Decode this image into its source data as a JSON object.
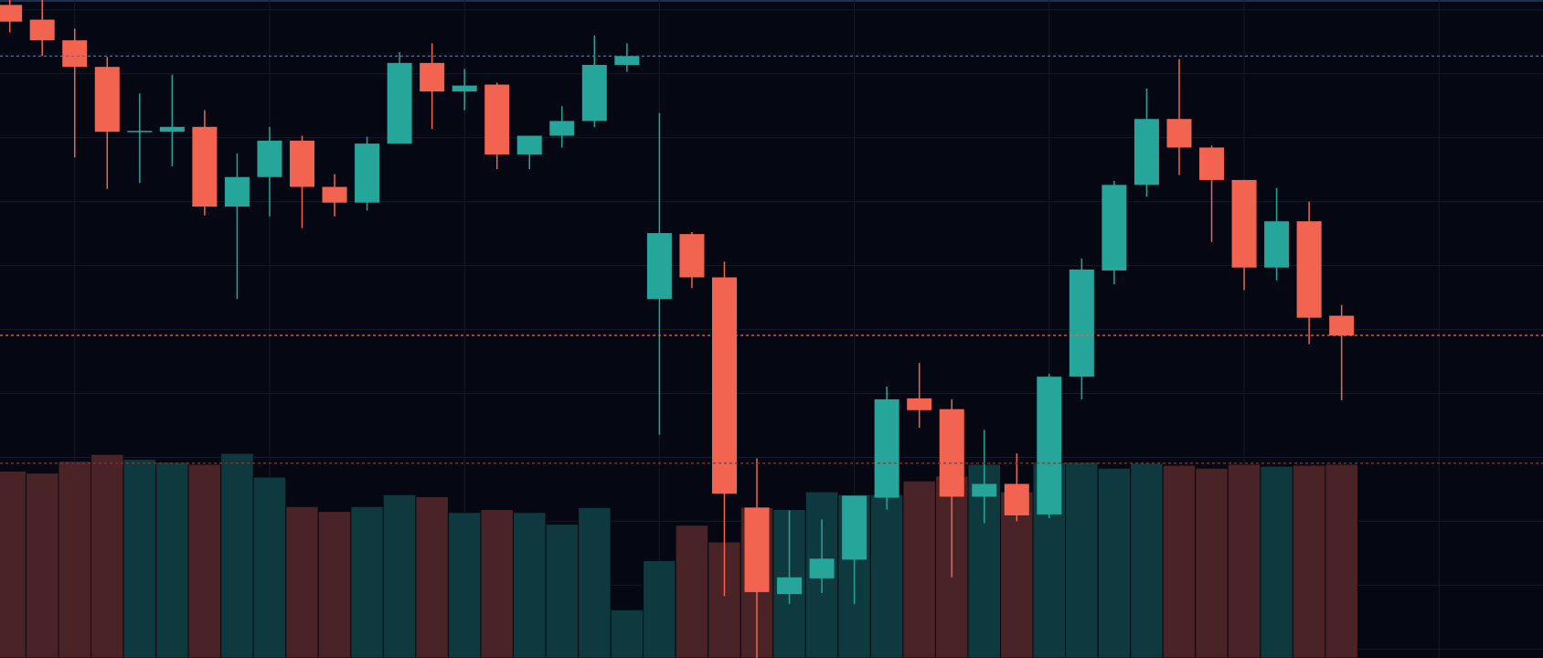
{
  "chart_data": {
    "type": "candlestick",
    "x": [
      0,
      1,
      2,
      3,
      4,
      5,
      6,
      7,
      8,
      9,
      10,
      11,
      12,
      13,
      14,
      15,
      16,
      17,
      18,
      19,
      20,
      21,
      22,
      23,
      24,
      25,
      26,
      27,
      28,
      29,
      30,
      31,
      32,
      33,
      34,
      35,
      36,
      37,
      38,
      39,
      40,
      41
    ],
    "open": [
      664,
      649,
      628,
      601,
      536,
      535,
      540,
      459,
      489,
      526,
      479,
      463,
      523,
      605,
      576,
      583,
      512,
      531,
      546,
      603,
      365,
      431,
      387,
      153,
      65,
      81,
      100,
      163,
      264,
      253,
      164,
      177,
      146,
      286,
      394,
      481,
      548,
      519,
      486,
      397,
      444,
      348
    ],
    "high": [
      669,
      669,
      640,
      611,
      574,
      593,
      557,
      513,
      540,
      531,
      492,
      530,
      616,
      625,
      599,
      585,
      531,
      561,
      633,
      625,
      554,
      433,
      403,
      203,
      150,
      141,
      165,
      276,
      300,
      263,
      232,
      208,
      289,
      406,
      485,
      579,
      609,
      521,
      486,
      478,
      464,
      359
    ],
    "low": [
      636,
      612,
      509,
      477,
      483,
      500,
      450,
      365,
      449,
      437,
      449,
      455,
      523,
      538,
      557,
      497,
      497,
      519,
      540,
      596,
      227,
      376,
      63,
      0,
      55,
      66,
      55,
      151,
      234,
      82,
      137,
      139,
      142,
      263,
      380,
      469,
      491,
      423,
      374,
      384,
      319,
      262
    ],
    "close": [
      647,
      628,
      601,
      535,
      536,
      540,
      459,
      489,
      526,
      479,
      463,
      523,
      605,
      576,
      582,
      512,
      531,
      546,
      603,
      612,
      432,
      387,
      167,
      67,
      82,
      101,
      165,
      263,
      252,
      164,
      177,
      145,
      286,
      395,
      481,
      548,
      519,
      486,
      397,
      444,
      346,
      328
    ],
    "volume": [
      190,
      188,
      200,
      207,
      202,
      199,
      197,
      208,
      184,
      154,
      149,
      154,
      166,
      164,
      148,
      151,
      148,
      136,
      153,
      49,
      99,
      135,
      118,
      153,
      151,
      169,
      166,
      166,
      180,
      185,
      197,
      169,
      199,
      199,
      193,
      198,
      196,
      193,
      197,
      195,
      196,
      197
    ],
    "up_color": "#26a69a",
    "down_color": "#f26450",
    "volume_up_color": "#0e3a3f",
    "volume_down_color": "#4a2326",
    "xlim": [
      -0.3,
      47.2
    ],
    "xticks": [
      2,
      8,
      14,
      20,
      26,
      32,
      38,
      44
    ],
    "ylim": [
      0,
      669
    ],
    "yticks": [
      659,
      594,
      529,
      464,
      399,
      334,
      269,
      204,
      139,
      74,
      9
    ],
    "grid": true,
    "price_lines": [
      {
        "value": 612,
        "color": "#3d6fd1"
      },
      {
        "value": 328,
        "color": "#f26450"
      },
      {
        "value": 198,
        "color": "#7a3a3e"
      }
    ]
  }
}
